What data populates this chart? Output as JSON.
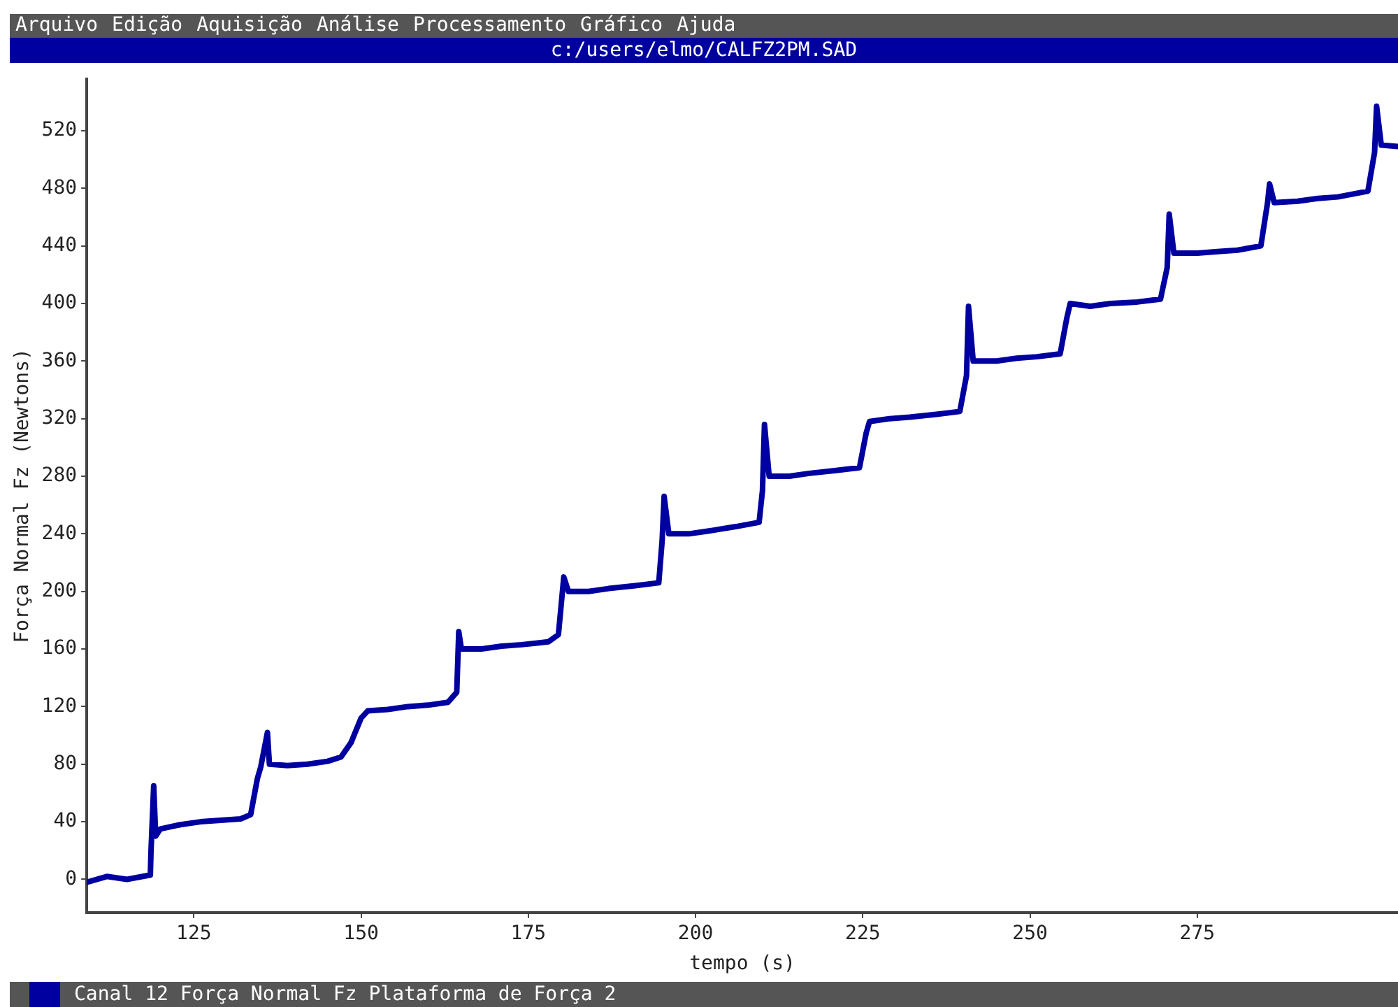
{
  "chart_data": {
    "type": "line",
    "title": "c:/users/elmo/CALFZ2PM.SAD",
    "annotations": [
      "Arquivo",
      "Edição",
      "Aquisição",
      "Análise",
      "Processamento",
      "Gráfico",
      "Ajuda"
    ],
    "xlabel": "tempo (s)",
    "ylabel": "Força Normal Fz (Newtons)",
    "xlim": [
      109,
      305
    ],
    "xticks": [
      125,
      150,
      175,
      200,
      225,
      250,
      275
    ],
    "ylim": [
      -23,
      556
    ],
    "yticks": [
      0,
      40,
      80,
      120,
      160,
      200,
      240,
      280,
      320,
      360,
      400,
      440,
      480,
      520
    ],
    "grid": false,
    "legend": "bottom",
    "marker": "none",
    "line_style": "solid",
    "series": [
      {
        "name": "Canal 12 Força Normal Fz Plataforma de Força 2",
        "color": "#0000a0",
        "x": [
          109,
          112,
          115,
          118.5,
          118.6,
          119,
          119.3,
          120,
          123,
          126,
          129,
          132,
          133.5,
          134.5,
          135,
          136,
          136.3,
          139,
          142,
          145,
          147,
          148.5,
          150,
          151,
          154,
          157,
          160,
          163,
          164.3,
          164.6,
          165,
          168,
          171,
          174,
          178,
          179.5,
          180,
          180.3,
          181,
          184,
          187,
          191,
          194.5,
          195,
          195.3,
          196,
          199,
          202,
          206,
          209.5,
          210,
          210.3,
          211,
          214,
          217,
          221,
          224.5,
          225.5,
          226,
          229,
          232,
          236,
          239.5,
          240.5,
          240.8,
          241.5,
          245,
          248,
          251,
          254.5,
          255.5,
          256,
          259,
          262,
          266,
          269.5,
          270.5,
          270.8,
          271.5,
          275,
          278,
          281,
          284.5,
          285.5,
          285.8,
          286.5,
          290,
          293,
          296,
          300.5,
          301.5,
          301.8,
          302.5,
          305
        ],
        "values": [
          -2,
          2,
          0,
          3,
          20,
          65,
          30,
          35,
          38,
          40,
          41,
          42,
          45,
          70,
          78,
          102,
          80,
          79,
          80,
          82,
          85,
          95,
          112,
          117,
          118,
          120,
          121,
          123,
          130,
          172,
          160,
          160,
          162,
          163,
          165,
          170,
          195,
          210,
          200,
          200,
          202,
          204,
          206,
          235,
          266,
          240,
          240,
          242,
          245,
          248,
          270,
          316,
          280,
          280,
          282,
          284,
          286,
          310,
          318,
          320,
          321,
          323,
          325,
          350,
          398,
          360,
          360,
          362,
          363,
          365,
          390,
          400,
          398,
          400,
          401,
          403,
          425,
          462,
          435,
          435,
          436,
          437,
          440,
          470,
          483,
          470,
          471,
          473,
          474,
          478,
          505,
          537,
          510,
          509
        ]
      }
    ]
  }
}
